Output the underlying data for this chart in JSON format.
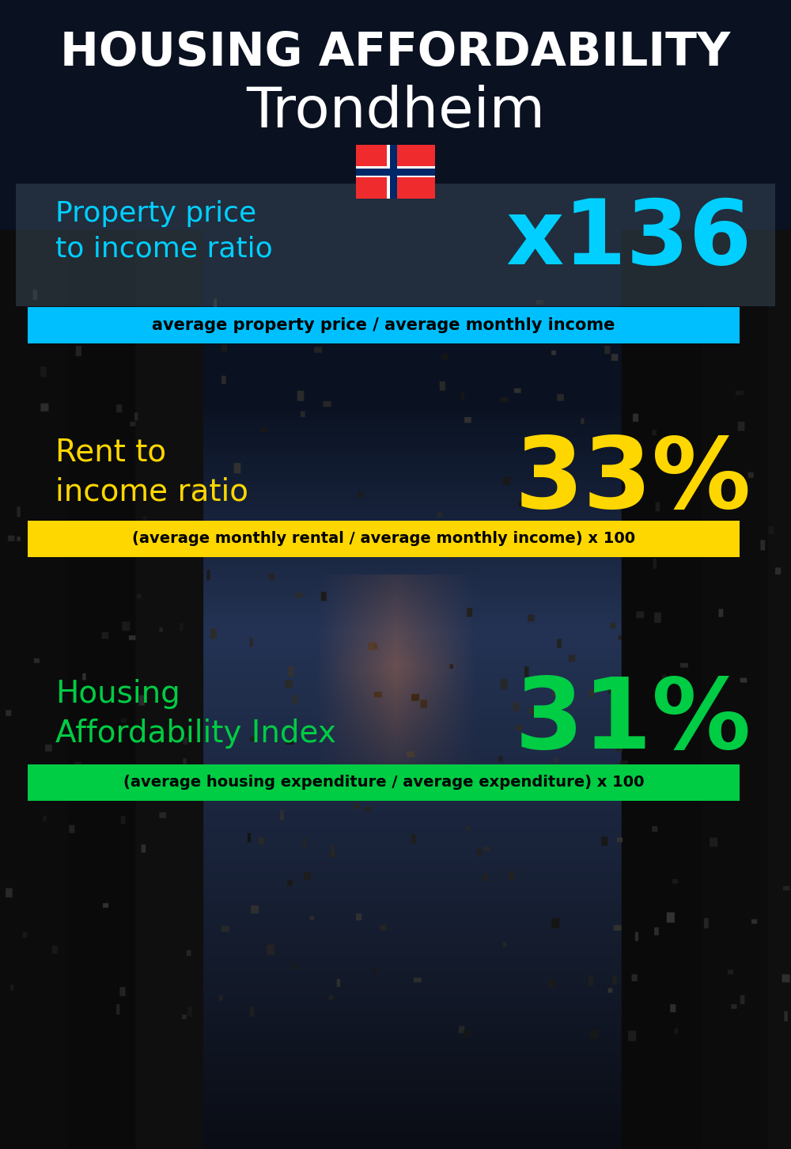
{
  "title_line1": "HOUSING AFFORDABILITY",
  "title_line2": "Trondheim",
  "section1_label": "Property price\nto income ratio",
  "section1_value": "x136",
  "section1_label_color": "#00cfff",
  "section1_value_color": "#00cfff",
  "section1_formula": "average property price / average monthly income",
  "section1_formula_bg": "#00bfff",
  "section2_label": "Rent to\nincome ratio",
  "section2_value": "33%",
  "section2_label_color": "#FFD700",
  "section2_value_color": "#FFD700",
  "section2_formula": "(average monthly rental / average monthly income) x 100",
  "section2_formula_bg": "#FFD700",
  "section3_label": "Housing\nAffordability Index",
  "section3_value": "31%",
  "section3_label_color": "#00CC44",
  "section3_value_color": "#00CC44",
  "section3_formula": "(average housing expenditure / average expenditure) x 100",
  "section3_formula_bg": "#00CC44",
  "bg_color": "#080e1a",
  "title_color": "#ffffff",
  "formula_text_color": "#000000",
  "panel1_color": "#3a4a5a",
  "panel1_alpha": 0.5,
  "fig_width": 10.0,
  "fig_height": 14.52,
  "dpi": 100
}
